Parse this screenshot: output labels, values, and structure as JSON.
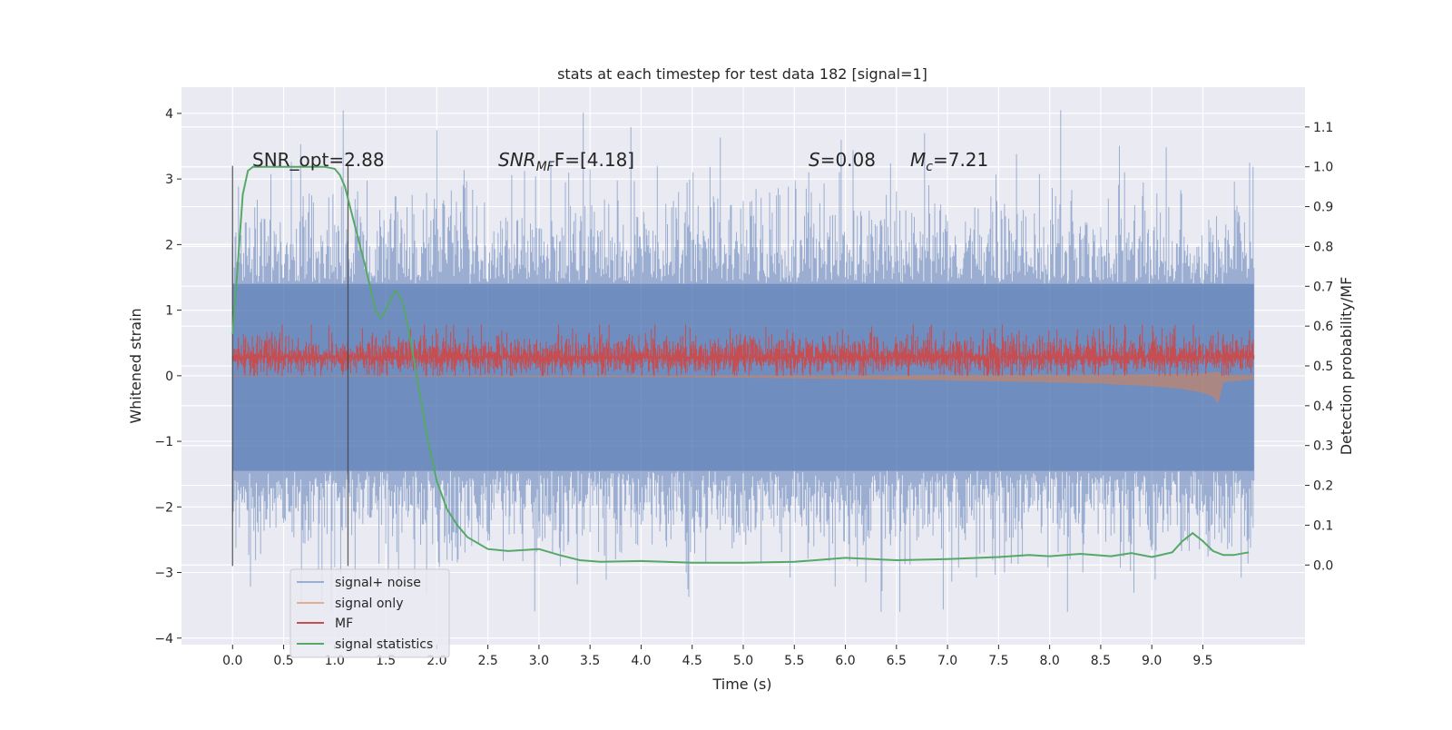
{
  "chart_data": {
    "type": "line",
    "title": "stats at each timestep for test data 182 [signal=1]",
    "xlabel": "Time (s)",
    "ylabel": "Whitened strain",
    "ylabel_right": "Detection probability/MF",
    "xlim": [
      -0.5,
      10.5
    ],
    "ylim": [
      -4.1,
      4.4
    ],
    "ylim_right": [
      -0.2,
      1.2
    ],
    "xticks": [
      0.0,
      0.5,
      1.0,
      1.5,
      2.0,
      2.5,
      3.0,
      3.5,
      4.0,
      4.5,
      5.0,
      5.5,
      6.0,
      6.5,
      7.0,
      7.5,
      8.0,
      8.5,
      9.0,
      9.5
    ],
    "xtick_labels": [
      "0.0",
      "0.5",
      "1.0",
      "1.5",
      "2.0",
      "2.5",
      "3.0",
      "3.5",
      "4.0",
      "4.5",
      "5.0",
      "5.5",
      "6.0",
      "6.5",
      "7.0",
      "7.5",
      "8.0",
      "8.5",
      "9.0",
      "9.5"
    ],
    "yticks": [
      -4,
      -3,
      -2,
      -1,
      0,
      1,
      2,
      3,
      4
    ],
    "ytick_labels": [
      "−4",
      "−3",
      "−2",
      "−1",
      "0",
      "1",
      "2",
      "3",
      "4"
    ],
    "yticks_right": [
      0.0,
      0.1,
      0.2,
      0.3,
      0.4,
      0.5,
      0.6,
      0.7,
      0.8,
      0.9,
      1.0,
      1.1
    ],
    "ytick_labels_right": [
      "0.0",
      "0.1",
      "0.2",
      "0.3",
      "0.4",
      "0.5",
      "0.6",
      "0.7",
      "0.8",
      "0.9",
      "1.0",
      "1.1"
    ],
    "grid": true,
    "legend_position": "lower-left",
    "legend": [
      "signal+ noise",
      "signal only",
      "MF",
      "signal statistics"
    ],
    "annotations": {
      "snr_opt_label": "SNR_opt=2.88",
      "snr_mf": {
        "base": "SNR",
        "sub": "MF",
        "rest": "F=[4.18]"
      },
      "s_label": {
        "sym": "S",
        "rest": "=0.08"
      },
      "mc_label": {
        "base": "M",
        "sub": "c",
        "rest": "=7.21"
      }
    },
    "vertical_lines_x": [
      0.0,
      1.13
    ],
    "series": [
      {
        "name": "signal+ noise",
        "color": "#4c72b0",
        "axis": "left",
        "description": "noise band",
        "x_range": [
          0.0,
          10.0
        ],
        "band": [
          -1.45,
          1.4
        ],
        "outlier_max": 4.05,
        "outlier_min": -3.6
      },
      {
        "name": "signal only",
        "color": "#dd8452",
        "axis": "left",
        "x": [
          0.0,
          1.0,
          2.0,
          3.0,
          4.0,
          5.0,
          6.0,
          7.0,
          8.0,
          8.5,
          9.0,
          9.3,
          9.5,
          9.6,
          9.65,
          9.7,
          10.0
        ],
        "envelope": [
          0.01,
          0.01,
          0.015,
          0.02,
          0.02,
          0.03,
          0.05,
          0.07,
          0.1,
          0.12,
          0.16,
          0.2,
          0.26,
          0.32,
          0.42,
          0.1,
          0.05
        ]
      },
      {
        "name": "MF",
        "color": "#c44e52",
        "axis": "left",
        "x_range": [
          0.0,
          10.0
        ],
        "band": [
          0.0,
          0.78
        ],
        "center": 0.28
      },
      {
        "name": "signal statistics",
        "color": "#55a868",
        "axis": "right",
        "x": [
          0.0,
          0.05,
          0.1,
          0.15,
          0.2,
          0.3,
          0.5,
          0.7,
          0.9,
          1.0,
          1.05,
          1.1,
          1.15,
          1.2,
          1.3,
          1.4,
          1.45,
          1.5,
          1.55,
          1.6,
          1.65,
          1.7,
          1.8,
          1.9,
          2.0,
          2.1,
          2.2,
          2.3,
          2.5,
          2.7,
          3.0,
          3.2,
          3.4,
          3.6,
          4.0,
          4.5,
          5.0,
          5.5,
          6.0,
          6.5,
          7.0,
          7.5,
          7.8,
          8.0,
          8.3,
          8.6,
          8.8,
          9.0,
          9.2,
          9.3,
          9.4,
          9.5,
          9.6,
          9.7,
          9.8,
          9.95
        ],
        "y": [
          0.58,
          0.75,
          0.93,
          0.99,
          1.0,
          1.0,
          1.0,
          1.0,
          1.0,
          0.995,
          0.98,
          0.95,
          0.9,
          0.85,
          0.75,
          0.64,
          0.62,
          0.64,
          0.67,
          0.69,
          0.67,
          0.62,
          0.48,
          0.33,
          0.21,
          0.14,
          0.1,
          0.07,
          0.04,
          0.035,
          0.04,
          0.025,
          0.012,
          0.008,
          0.01,
          0.006,
          0.006,
          0.008,
          0.018,
          0.012,
          0.015,
          0.02,
          0.025,
          0.022,
          0.028,
          0.022,
          0.03,
          0.02,
          0.032,
          0.06,
          0.08,
          0.06,
          0.035,
          0.025,
          0.025,
          0.032
        ]
      }
    ]
  }
}
